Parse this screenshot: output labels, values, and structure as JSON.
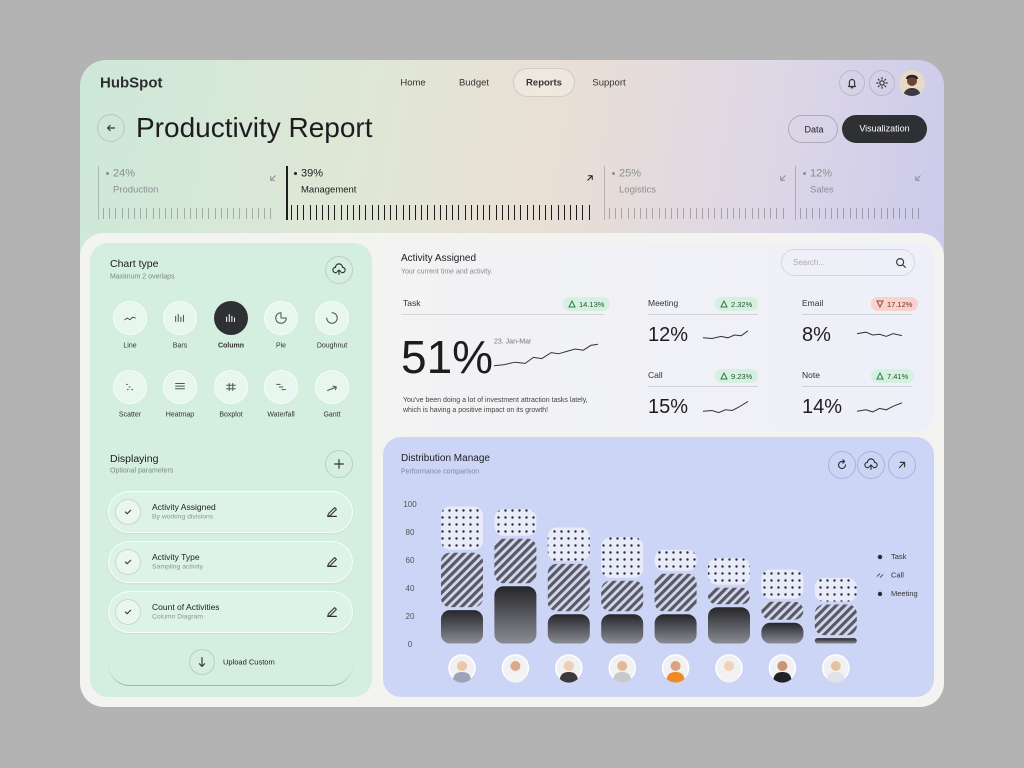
{
  "brand": "HubSpot",
  "nav": [
    {
      "label": "Home"
    },
    {
      "label": "Budget"
    },
    {
      "label": "Reports",
      "active": true
    },
    {
      "label": "Support"
    }
  ],
  "page_title": "Productivity Report",
  "view_buttons": [
    {
      "label": "Data"
    },
    {
      "label": "Visualization",
      "active": true
    }
  ],
  "stats": [
    {
      "value": "24%",
      "label": "Production",
      "trend": "down"
    },
    {
      "value": "39%",
      "label": "Management",
      "trend": "up",
      "active": true
    },
    {
      "value": "25%",
      "label": "Logistics",
      "trend": "down"
    },
    {
      "value": "12%",
      "label": "Sales",
      "trend": "down"
    }
  ],
  "chart_type": {
    "title": "Chart type",
    "subtitle": "Maximum 2 overlaps",
    "options": [
      {
        "label": "Line"
      },
      {
        "label": "Bars"
      },
      {
        "label": "Column",
        "selected": true
      },
      {
        "label": "Pie"
      },
      {
        "label": "Doughnut"
      },
      {
        "label": "Scatter"
      },
      {
        "label": "Heatmap"
      },
      {
        "label": "Boxplot"
      },
      {
        "label": "Waterfall"
      },
      {
        "label": "Gantt"
      }
    ]
  },
  "displaying": {
    "title": "Displaying",
    "subtitle": "Optional parameters",
    "items": [
      {
        "title": "Activity Assigned",
        "subtitle": "By working divisions"
      },
      {
        "title": "Activity Type",
        "subtitle": "Sampling activity"
      },
      {
        "title": "Count of Activities",
        "subtitle": "Column Diagram"
      }
    ],
    "upload": "Upload Custom"
  },
  "activity": {
    "title": "Activity Assigned",
    "subtitle": "Your current time and activity.",
    "search_placeholder": "Search...",
    "task": {
      "label": "Task",
      "change": "14.13%",
      "trend": "up",
      "value": "51%",
      "period": "23. Jan-Mar",
      "description": "You've been doing a lot of investment attraction tasks lately, which is having a positive impact on its growth!"
    },
    "metrics": [
      {
        "label": "Meeting",
        "change": "2.32%",
        "trend": "up",
        "value": "12%"
      },
      {
        "label": "Email",
        "change": "17.12%",
        "trend": "down",
        "value": "8%"
      },
      {
        "label": "Call",
        "change": "9.23%",
        "trend": "up",
        "value": "15%"
      },
      {
        "label": "Note",
        "change": "7.41%",
        "trend": "up",
        "value": "14%"
      }
    ]
  },
  "chart_data": {
    "type": "bar",
    "stacked": true,
    "title": "Distribution Manage",
    "subtitle": "Performance comparison",
    "categories": [
      null,
      null,
      null,
      null,
      null,
      null,
      null,
      null
    ],
    "series": [
      {
        "name": "Task",
        "color": "#2b2b2e",
        "pattern": "solid",
        "values": [
          26,
          43,
          23,
          23,
          23,
          28,
          17,
          6
        ]
      },
      {
        "name": "Call",
        "color": "#55585f",
        "pattern": "stripes",
        "values": [
          41,
          34,
          36,
          24,
          29,
          14,
          15,
          24
        ]
      },
      {
        "name": "Meeting",
        "color": "#2b2b2e",
        "pattern": "dots",
        "values": [
          33,
          21,
          26,
          31,
          17,
          21,
          23,
          19
        ]
      }
    ],
    "ylim": [
      0,
      100
    ],
    "yticks": [
      0,
      20,
      40,
      60,
      80,
      100
    ],
    "grid": false,
    "legend": "right"
  }
}
